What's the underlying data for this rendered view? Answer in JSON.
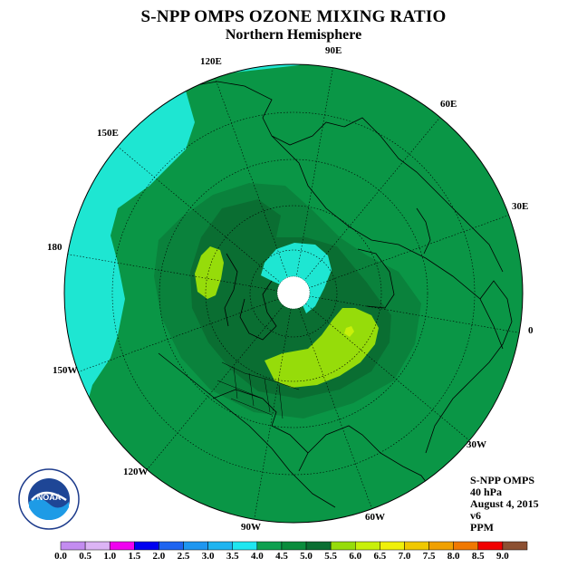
{
  "title": "S-NPP OMPS OZONE MIXING RATIO",
  "subtitle": "Northern Hemisphere",
  "longitude_labels": [
    "90E",
    "60E",
    "30E",
    "0",
    "30W",
    "60W",
    "90W",
    "120W",
    "150W",
    "180",
    "150E",
    "120E"
  ],
  "info": {
    "instrument": "S-NPP OMPS",
    "pressure": "40 hPa",
    "date": "August 4, 2015",
    "version": "v6",
    "units": "PPM"
  },
  "logo": {
    "name": "NOAA",
    "ring_text": "NATIONAL OCEANIC AND ATMOSPHERIC ADMINISTRATION · U.S. DEPARTMENT OF COMMERCE"
  },
  "colorbar": {
    "ticks": [
      "0.0",
      "0.5",
      "1.0",
      "1.5",
      "2.0",
      "2.5",
      "3.0",
      "3.5",
      "4.0",
      "4.5",
      "5.0",
      "5.5",
      "6.0",
      "6.5",
      "7.0",
      "7.5",
      "8.0",
      "8.5",
      "9.0"
    ],
    "colors": [
      "#c38cf0",
      "#dcb4f5",
      "#f000f0",
      "#0000f0",
      "#1e64f0",
      "#1e96f0",
      "#1eb4f0",
      "#1ee6f0",
      "#0fa050",
      "#0a8c3c",
      "#0a6e32",
      "#96dc0a",
      "#c8f00a",
      "#f0f00a",
      "#f0c800",
      "#f0a000",
      "#f07800",
      "#f00000",
      "#8c5032"
    ]
  },
  "field_colors": {
    "level_3_5_to_4_0": "#1ee6d2",
    "level_4_0_to_4_5": "#0a9646",
    "level_4_5_to_5_0": "#0a823c",
    "level_5_0_to_5_5": "#0a6e32",
    "level_5_5_to_6_0": "#96dc0a",
    "level_6_0_to_6_5": "#c8f00a",
    "level_6_5_to_7_0": "#f0f00a"
  }
}
